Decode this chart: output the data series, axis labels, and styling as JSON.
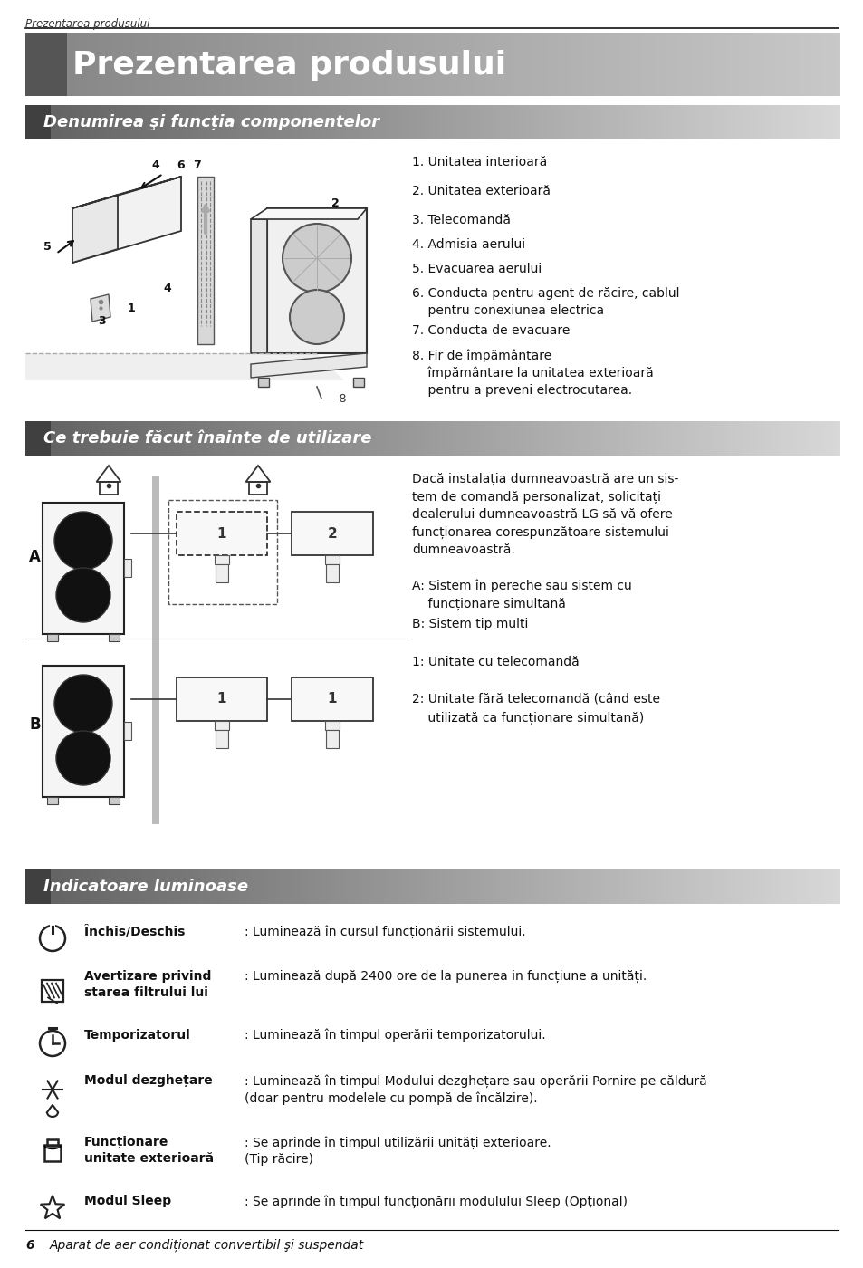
{
  "page_header": "Prezentarea produsului",
  "main_title": "Prezentarea produsului",
  "section1_title": "Denumirea şi funcția componentelor",
  "section1_items": [
    "1. Unitatea interioară",
    "2. Unitatea exterioară",
    "3. Telecomandă",
    "4. Admisia aerului",
    "5. Evacuarea aerului",
    "6. Conducta pentru agent de răcire, cablul\n    pentru conexiunea electrica",
    "7. Conducta de evacuare",
    "8. Fir de împământare\n    împământare la unitatea exterioară\n    pentru a preveni electrocutarea."
  ],
  "section2_title": "Ce trebuie făcut înainte de utilizare",
  "section2_text": "Dacă instalația dumneavoastră are un sis-\ntem de comandă personalizat, solicitați\ndealerului dumneavoastră LG să vă ofere\nfuncționarea corespunzătoare sistemului\ndumneavoastră.",
  "section2_legend": [
    "A: Sistem în pereche sau sistem cu\n    funcționare simultană",
    "B: Sistem tip multi",
    "1: Unitate cu telecomandă",
    "2: Unitate fără telecomandă (când este\n    utilizată ca funcționare simultană)"
  ],
  "section3_title": "Indicatoare luminoase",
  "bold_texts": [
    "Închis/Deschis",
    "Avertizare privind\nstarea filtrului lui",
    "Temporizatorul",
    "Modul dezghețare",
    "Funcționare\nunitate exterioară",
    "Modul Sleep"
  ],
  "descriptions": [
    ": Luminează în cursul funcționării sistemului.",
    ": Luminează după 2400 ore de la punerea in funcțiune a unități.",
    ": Luminează în timpul operării temporizatorului.",
    ": Luminează în timpul Modului dezghețare sau operării Pornire pe căldură\n(doar pentru modelele cu pompă de încălzire).",
    ": Se aprinde în timpul utilizării unități exterioare.\n(Tip răcire)",
    ": Se aprinde în timpul funcționării modulului Sleep (Opțional)"
  ],
  "footer_num": "6",
  "footer_text": "Aparat de aer condiționat convertibil şi suspendat",
  "bg_color": "#ffffff"
}
